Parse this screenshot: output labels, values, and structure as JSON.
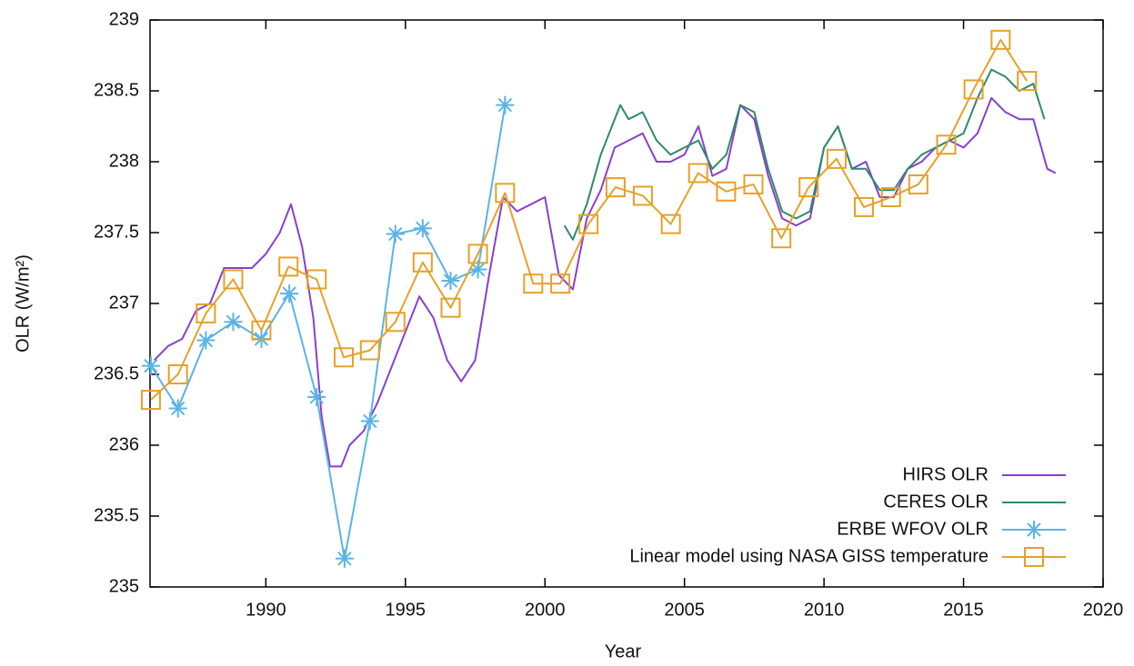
{
  "chart_data": {
    "type": "line",
    "x_label": "Year",
    "y_label": "OLR (W/m²)",
    "xlim": [
      1985.85,
      2020
    ],
    "xticks": [
      1990,
      1995,
      2000,
      2005,
      2010,
      2015,
      2020
    ],
    "ylim": [
      235,
      239
    ],
    "yticks": [
      235,
      235.5,
      236,
      236.5,
      237,
      237.5,
      238,
      238.5,
      239
    ],
    "legend": "lower right",
    "series": [
      {
        "name": "HIRS OLR",
        "color": "#8a3fd1",
        "marker": "none",
        "x": [
          1986.0,
          1986.5,
          1987.0,
          1987.5,
          1988.0,
          1988.5,
          1989.0,
          1989.5,
          1990.0,
          1990.5,
          1990.9,
          1991.3,
          1991.7,
          1992.0,
          1992.3,
          1992.7,
          1993.0,
          1993.5,
          1994.0,
          1994.5,
          1995.0,
          1995.5,
          1996.0,
          1996.5,
          1997.0,
          1997.5,
          1998.0,
          1998.5,
          1999.0,
          1999.5,
          2000.0,
          2000.5,
          2001.0,
          2001.5,
          2002.0,
          2002.5,
          2003.0,
          2003.5,
          2004.0,
          2004.5,
          2005.0,
          2005.5,
          2006.0,
          2006.5,
          2007.0,
          2007.5,
          2008.0,
          2008.5,
          2009.0,
          2009.5,
          2010.0,
          2010.5,
          2011.0,
          2011.5,
          2012.0,
          2012.5,
          2013.0,
          2013.5,
          2014.0,
          2014.5,
          2015.0,
          2015.5,
          2016.0,
          2016.5,
          2017.0,
          2017.5,
          2018.0,
          2018.3
        ],
        "values": [
          236.6,
          236.7,
          236.75,
          236.95,
          237.0,
          237.25,
          237.25,
          237.25,
          237.35,
          237.5,
          237.7,
          237.4,
          236.9,
          236.2,
          235.85,
          235.85,
          236.0,
          236.1,
          236.3,
          236.55,
          236.8,
          237.05,
          236.9,
          236.6,
          236.45,
          236.6,
          237.2,
          237.75,
          237.65,
          237.7,
          237.75,
          237.2,
          237.1,
          237.6,
          237.8,
          238.1,
          238.15,
          238.2,
          238.0,
          238.0,
          238.05,
          238.25,
          237.9,
          237.95,
          238.4,
          238.3,
          237.9,
          237.6,
          237.55,
          237.6,
          238.1,
          238.25,
          237.95,
          238.0,
          237.75,
          237.75,
          237.95,
          238.0,
          238.1,
          238.15,
          238.1,
          238.2,
          238.45,
          238.35,
          238.3,
          238.3,
          237.95,
          237.92
        ]
      },
      {
        "name": "CERES OLR",
        "color": "#2e8b6a",
        "marker": "none",
        "x": [
          2000.7,
          2001.0,
          2001.5,
          2002.0,
          2002.5,
          2002.7,
          2003.0,
          2003.5,
          2004.0,
          2004.5,
          2005.0,
          2005.5,
          2006.0,
          2006.5,
          2007.0,
          2007.5,
          2008.0,
          2008.5,
          2009.0,
          2009.5,
          2010.0,
          2010.5,
          2011.0,
          2011.5,
          2012.0,
          2012.5,
          2013.0,
          2013.5,
          2014.0,
          2014.5,
          2015.0,
          2015.5,
          2016.0,
          2016.5,
          2017.0,
          2017.5,
          2017.9
        ],
        "values": [
          237.55,
          237.45,
          237.7,
          238.05,
          238.3,
          238.4,
          238.3,
          238.35,
          238.15,
          238.05,
          238.1,
          238.15,
          237.95,
          238.05,
          238.4,
          238.35,
          237.95,
          237.65,
          237.6,
          237.65,
          238.1,
          238.25,
          237.95,
          237.95,
          237.8,
          237.8,
          237.95,
          238.05,
          238.1,
          238.15,
          238.2,
          238.45,
          238.65,
          238.6,
          238.5,
          238.55,
          238.3
        ]
      },
      {
        "name": "ERBE WFOV OLR",
        "color": "#5bb4e5",
        "marker": "asterisk",
        "x": [
          1985.88,
          1986.85,
          1987.85,
          1988.83,
          1989.84,
          1990.84,
          1991.82,
          1992.82,
          1993.73,
          1994.64,
          1995.62,
          1996.62,
          1997.6,
          1998.57
        ],
        "values": [
          236.56,
          236.26,
          236.74,
          236.87,
          236.75,
          237.07,
          236.34,
          235.2,
          236.17,
          237.49,
          237.53,
          237.16,
          237.24,
          238.4
        ]
      },
      {
        "name": "Linear model using NASA GISS temperature",
        "color": "#e6a128",
        "marker": "square",
        "x": [
          1985.88,
          1986.85,
          1987.85,
          1988.83,
          1989.84,
          1990.81,
          1991.82,
          1992.79,
          1993.73,
          1994.64,
          1995.62,
          1996.62,
          1997.6,
          1998.57,
          1999.58,
          2000.55,
          2001.56,
          2002.53,
          2003.51,
          2004.51,
          2005.49,
          2006.49,
          2007.47,
          2008.47,
          2009.45,
          2010.45,
          2011.43,
          2012.4,
          2013.38,
          2014.38,
          2015.36,
          2016.33,
          2017.27
        ],
        "values": [
          236.32,
          236.5,
          236.93,
          237.17,
          236.81,
          237.26,
          237.17,
          236.62,
          236.67,
          236.87,
          237.29,
          236.97,
          237.35,
          237.78,
          237.14,
          237.14,
          237.56,
          237.82,
          237.76,
          237.56,
          237.92,
          237.79,
          237.84,
          237.46,
          237.82,
          238.02,
          237.68,
          237.75,
          237.84,
          238.12,
          238.51,
          238.86,
          238.57
        ]
      }
    ]
  }
}
